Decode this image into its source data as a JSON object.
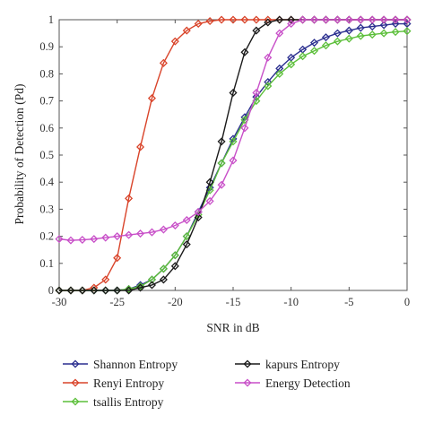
{
  "chart_data": {
    "type": "line",
    "xlabel": "SNR in dB",
    "ylabel": "Probability of Detection (Pd)",
    "xlim": [
      -30,
      0
    ],
    "ylim": [
      0,
      1
    ],
    "xticks": [
      -30,
      -25,
      -20,
      -15,
      -10,
      -5,
      0
    ],
    "yticks": [
      0,
      0.1,
      0.2,
      0.3,
      0.4,
      0.5,
      0.6,
      0.7,
      0.8,
      0.9,
      1
    ],
    "grid": false,
    "legend_position": "bottom",
    "x": [
      -30,
      -29,
      -28,
      -27,
      -26,
      -25,
      -24,
      -23,
      -22,
      -21,
      -20,
      -19,
      -18,
      -17,
      -16,
      -15,
      -14,
      -13,
      -12,
      -11,
      -10,
      -9,
      -8,
      -7,
      -6,
      -5,
      -4,
      -3,
      -2,
      -1,
      0
    ],
    "series": [
      {
        "name": "Shannon Entropy",
        "color": "#2b2f8f",
        "values": [
          0,
          0,
          0,
          0,
          0,
          0,
          0.005,
          0.02,
          0.04,
          0.08,
          0.13,
          0.2,
          0.29,
          0.38,
          0.47,
          0.56,
          0.64,
          0.715,
          0.77,
          0.82,
          0.86,
          0.89,
          0.915,
          0.935,
          0.95,
          0.96,
          0.97,
          0.975,
          0.98,
          0.985,
          0.985
        ]
      },
      {
        "name": "Renyi Entropy",
        "color": "#d9442a",
        "values": [
          0,
          0,
          0,
          0.01,
          0.04,
          0.12,
          0.34,
          0.53,
          0.71,
          0.84,
          0.92,
          0.96,
          0.985,
          0.995,
          1,
          1,
          1,
          1,
          1,
          1,
          1,
          1,
          1,
          1,
          1,
          1,
          1,
          1,
          1,
          1,
          1
        ]
      },
      {
        "name": "tsallis Entropy",
        "color": "#5cbf3a",
        "values": [
          0,
          0,
          0,
          0,
          0,
          0,
          0.005,
          0.015,
          0.04,
          0.08,
          0.13,
          0.2,
          0.28,
          0.37,
          0.47,
          0.55,
          0.63,
          0.7,
          0.755,
          0.8,
          0.835,
          0.865,
          0.885,
          0.905,
          0.92,
          0.93,
          0.94,
          0.945,
          0.95,
          0.955,
          0.958
        ]
      },
      {
        "name": "kapurs Entropy",
        "color": "#1a1a1a",
        "values": [
          0,
          0,
          0,
          0,
          0,
          0,
          0,
          0.01,
          0.02,
          0.04,
          0.09,
          0.17,
          0.27,
          0.4,
          0.55,
          0.73,
          0.88,
          0.96,
          0.99,
          1,
          1,
          1,
          1,
          1,
          1,
          1,
          1,
          1,
          1,
          1,
          1
        ]
      },
      {
        "name": "Energy Detection",
        "color": "#c84fc8",
        "values": [
          0.19,
          0.185,
          0.187,
          0.19,
          0.195,
          0.2,
          0.205,
          0.21,
          0.215,
          0.225,
          0.24,
          0.26,
          0.29,
          0.33,
          0.39,
          0.48,
          0.6,
          0.73,
          0.86,
          0.95,
          0.985,
          1,
          1,
          1,
          1,
          1,
          1,
          1,
          1,
          1,
          1
        ]
      }
    ],
    "legend": [
      "Shannon Entropy",
      "kapurs Entropy",
      "Renyi Entropy",
      "Energy Detection",
      "tsallis Entropy"
    ]
  }
}
